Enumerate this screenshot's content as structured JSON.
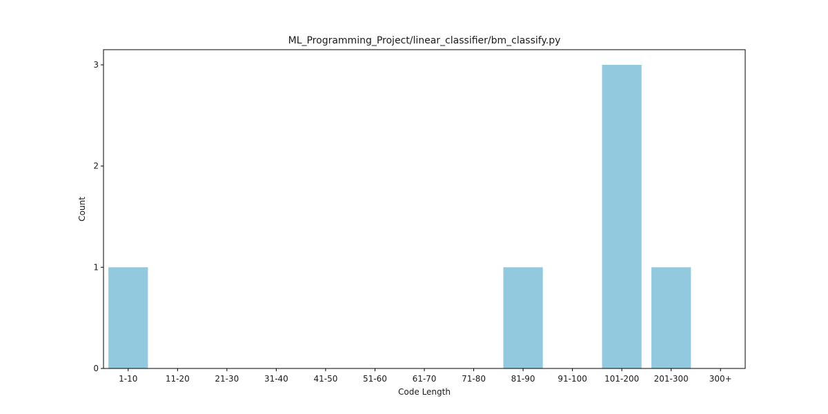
{
  "chart_data": {
    "type": "bar",
    "title": "ML_Programming_Project/linear_classifier/bm_classify.py",
    "xlabel": "Code Length",
    "ylabel": "Count",
    "categories": [
      "1-10",
      "11-20",
      "21-30",
      "31-40",
      "41-50",
      "51-60",
      "61-70",
      "71-80",
      "81-90",
      "91-100",
      "101-200",
      "201-300",
      "300+"
    ],
    "values": [
      1,
      0,
      0,
      0,
      0,
      0,
      0,
      0,
      1,
      0,
      3,
      1,
      0
    ],
    "ylim": [
      0,
      3.15
    ],
    "yticks": [
      0,
      1,
      2,
      3
    ],
    "grid": false,
    "bar_color": "#92c9df"
  }
}
